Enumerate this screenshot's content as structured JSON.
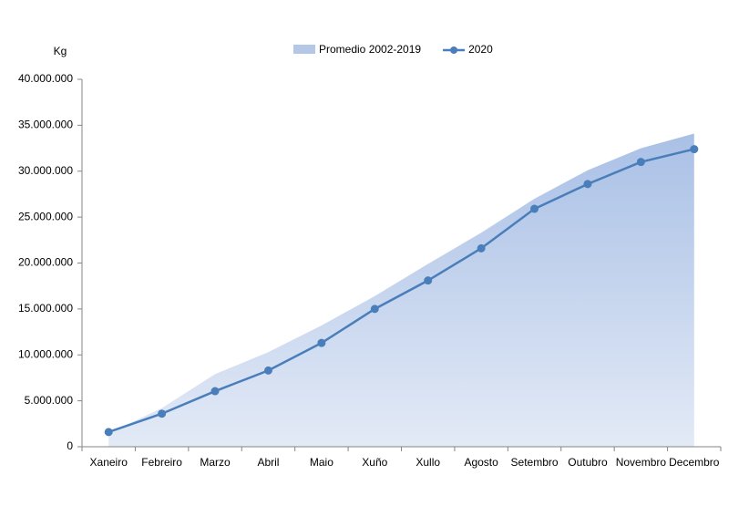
{
  "chart_data": {
    "type": "area_line",
    "y_label": "Kg",
    "categories": [
      "Xaneiro",
      "Febreiro",
      "Marzo",
      "Abril",
      "Maio",
      "Xuño",
      "Xullo",
      "Agosto",
      "Setembro",
      "Outubro",
      "Novembro",
      "Decembro"
    ],
    "series": [
      {
        "name": "Promedio 2002-2019",
        "kind": "area",
        "color": "#b4c7e7",
        "values": [
          1500000,
          4200000,
          7900000,
          10300000,
          13200000,
          16400000,
          19900000,
          23300000,
          27000000,
          30100000,
          32500000,
          34100000
        ]
      },
      {
        "name": "2020",
        "kind": "line",
        "color": "#4a7ebb",
        "values": [
          1600000,
          3600000,
          6050000,
          8300000,
          11300000,
          15000000,
          18100000,
          21600000,
          25900000,
          28600000,
          31000000,
          32400000
        ]
      }
    ],
    "ylim": [
      0,
      40000000
    ],
    "yticks": [
      0,
      {
        "value": 5000000,
        "label": "5.000.000"
      },
      {
        "value": 10000000,
        "label": "10.000.000"
      },
      {
        "value": 15000000,
        "label": "15.000.000"
      },
      {
        "value": 20000000,
        "label": "20.000.000"
      },
      {
        "value": 25000000,
        "label": "25.000.000"
      },
      {
        "value": 30000000,
        "label": "30.000.000"
      },
      {
        "value": 35000000,
        "label": "35.000.000"
      },
      {
        "value": 40000000,
        "label": "40.000.000"
      }
    ],
    "grid": false,
    "legend": "top"
  }
}
